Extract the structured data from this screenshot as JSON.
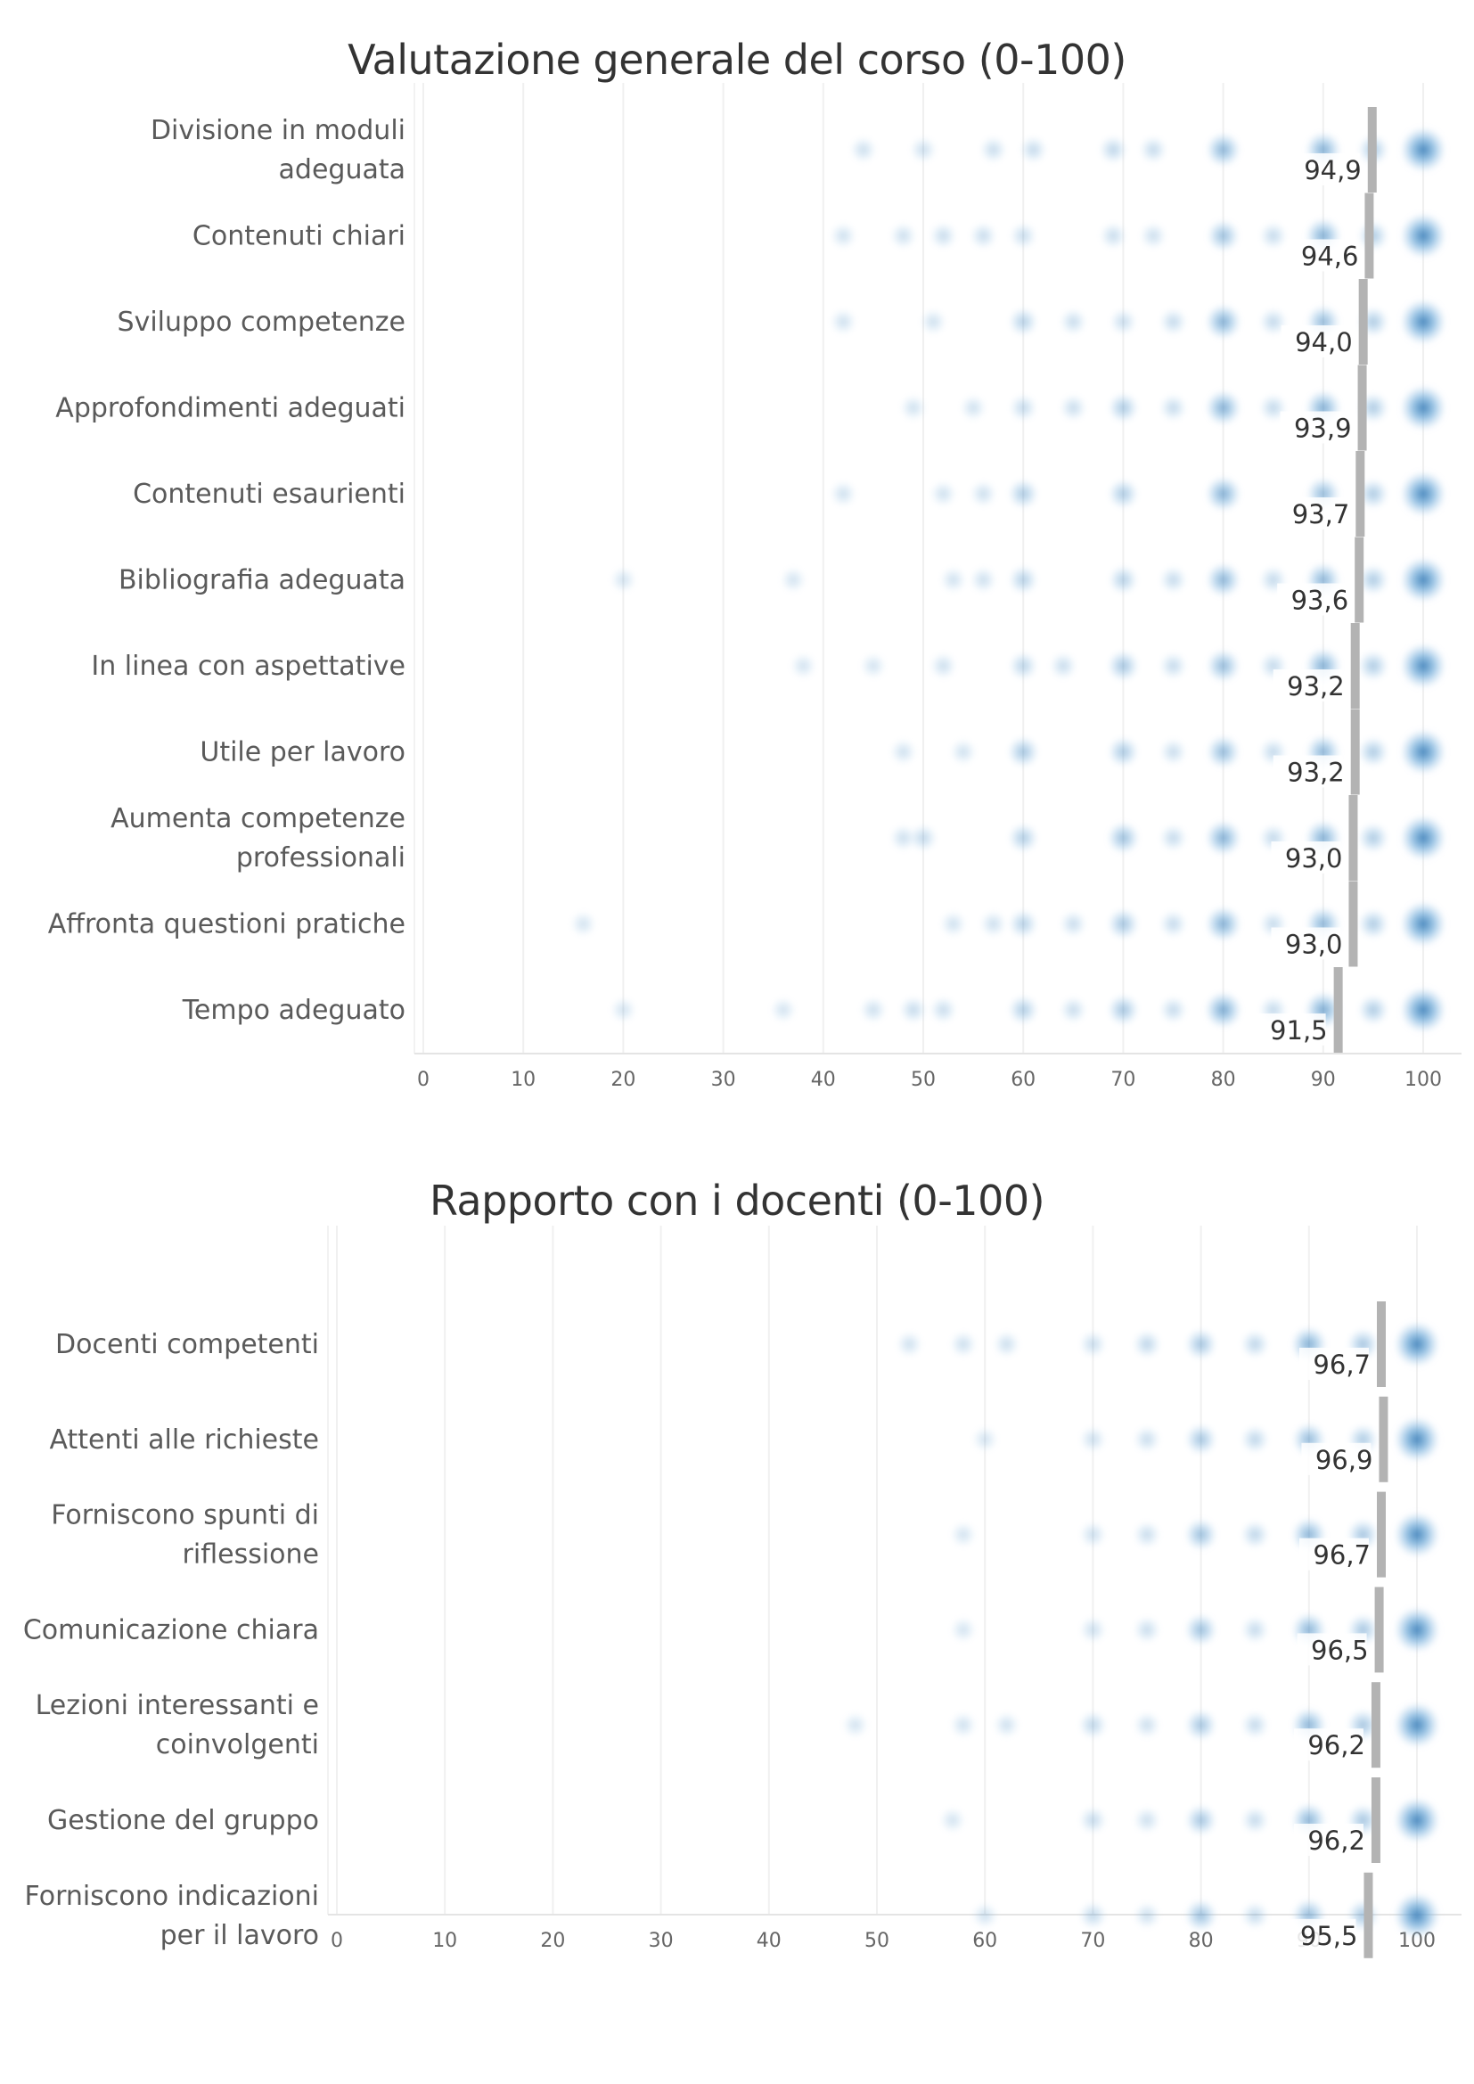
{
  "chart_data": [
    {
      "type": "scatter",
      "title": "Valutazione generale del corso (0-100)",
      "xlim": [
        0,
        100
      ],
      "ticks": [
        0,
        10,
        20,
        30,
        40,
        50,
        60,
        70,
        80,
        90,
        100
      ],
      "grid": true,
      "categories": [
        "Divisione in moduli adeguata",
        "Contenuti chiari",
        "Sviluppo competenze",
        "Approfondimenti adeguati",
        "Contenuti esaurienti",
        "Bibliografia adeguata",
        "In linea con aspettative",
        "Utile per lavoro",
        "Aumenta competenze professionali",
        "Affronta questioni pratiche",
        "Tempo adeguato"
      ],
      "label_lines": [
        [
          "Divisione in moduli",
          "adeguata"
        ],
        [
          "Contenuti chiari"
        ],
        [
          "Sviluppo competenze"
        ],
        [
          "Approfondimenti adeguati"
        ],
        [
          "Contenuti esaurienti"
        ],
        [
          "Bibliografia adeguata"
        ],
        [
          "In linea con aspettative"
        ],
        [
          "Utile per lavoro"
        ],
        [
          "Aumenta competenze",
          "professionali"
        ],
        [
          "Affronta questioni pratiche"
        ],
        [
          "Tempo adeguato"
        ]
      ],
      "means": [
        94.9,
        94.6,
        94.0,
        93.9,
        93.7,
        93.6,
        93.2,
        93.2,
        93.0,
        93.0,
        91.5
      ],
      "mean_labels": [
        "94,9",
        "94,6",
        "94,0",
        "93,9",
        "93,7",
        "93,6",
        "93,2",
        "93,2",
        "93,0",
        "93,0",
        "91,5"
      ],
      "dots": [
        [
          [
            44,
            0.12
          ],
          [
            50,
            0.12
          ],
          [
            57,
            0.14
          ],
          [
            61,
            0.16
          ],
          [
            69,
            0.2
          ],
          [
            73,
            0.16
          ],
          [
            80,
            0.5
          ],
          [
            90,
            0.55
          ],
          [
            95,
            0.3
          ],
          [
            100,
            1.0
          ]
        ],
        [
          [
            42,
            0.1
          ],
          [
            48,
            0.12
          ],
          [
            52,
            0.14
          ],
          [
            56,
            0.14
          ],
          [
            60,
            0.14
          ],
          [
            69,
            0.14
          ],
          [
            73,
            0.12
          ],
          [
            80,
            0.4
          ],
          [
            85,
            0.16
          ],
          [
            90,
            0.55
          ],
          [
            95,
            0.3
          ],
          [
            100,
            1.0
          ]
        ],
        [
          [
            42,
            0.1
          ],
          [
            51,
            0.1
          ],
          [
            60,
            0.25
          ],
          [
            65,
            0.14
          ],
          [
            70,
            0.14
          ],
          [
            75,
            0.16
          ],
          [
            80,
            0.55
          ],
          [
            85,
            0.18
          ],
          [
            90,
            0.45
          ],
          [
            95,
            0.3
          ],
          [
            100,
            1.0
          ]
        ],
        [
          [
            49,
            0.1
          ],
          [
            55,
            0.1
          ],
          [
            60,
            0.16
          ],
          [
            65,
            0.14
          ],
          [
            70,
            0.3
          ],
          [
            75,
            0.16
          ],
          [
            80,
            0.55
          ],
          [
            85,
            0.18
          ],
          [
            90,
            0.55
          ],
          [
            95,
            0.3
          ],
          [
            100,
            1.0
          ]
        ],
        [
          [
            42,
            0.1
          ],
          [
            52,
            0.1
          ],
          [
            56,
            0.12
          ],
          [
            60,
            0.3
          ],
          [
            70,
            0.3
          ],
          [
            80,
            0.55
          ],
          [
            90,
            0.45
          ],
          [
            95,
            0.3
          ],
          [
            100,
            1.0
          ]
        ],
        [
          [
            20,
            0.08
          ],
          [
            37,
            0.08
          ],
          [
            53,
            0.1
          ],
          [
            56,
            0.12
          ],
          [
            60,
            0.25
          ],
          [
            70,
            0.25
          ],
          [
            75,
            0.16
          ],
          [
            80,
            0.5
          ],
          [
            85,
            0.18
          ],
          [
            90,
            0.5
          ],
          [
            95,
            0.3
          ],
          [
            100,
            1.0
          ]
        ],
        [
          [
            38,
            0.08
          ],
          [
            45,
            0.08
          ],
          [
            52,
            0.12
          ],
          [
            60,
            0.22
          ],
          [
            64,
            0.14
          ],
          [
            70,
            0.35
          ],
          [
            75,
            0.16
          ],
          [
            80,
            0.45
          ],
          [
            85,
            0.18
          ],
          [
            90,
            0.55
          ],
          [
            95,
            0.3
          ],
          [
            100,
            1.0
          ]
        ],
        [
          [
            48,
            0.1
          ],
          [
            54,
            0.1
          ],
          [
            60,
            0.35
          ],
          [
            70,
            0.32
          ],
          [
            75,
            0.14
          ],
          [
            80,
            0.45
          ],
          [
            85,
            0.18
          ],
          [
            90,
            0.5
          ],
          [
            95,
            0.3
          ],
          [
            100,
            1.0
          ]
        ],
        [
          [
            48,
            0.12
          ],
          [
            50,
            0.18
          ],
          [
            60,
            0.28
          ],
          [
            70,
            0.4
          ],
          [
            75,
            0.16
          ],
          [
            80,
            0.55
          ],
          [
            85,
            0.18
          ],
          [
            90,
            0.55
          ],
          [
            95,
            0.3
          ],
          [
            100,
            1.0
          ]
        ],
        [
          [
            16,
            0.08
          ],
          [
            53,
            0.1
          ],
          [
            57,
            0.12
          ],
          [
            60,
            0.25
          ],
          [
            65,
            0.14
          ],
          [
            70,
            0.35
          ],
          [
            75,
            0.16
          ],
          [
            80,
            0.55
          ],
          [
            85,
            0.16
          ],
          [
            90,
            0.5
          ],
          [
            95,
            0.3
          ],
          [
            100,
            1.0
          ]
        ],
        [
          [
            20,
            0.08
          ],
          [
            36,
            0.08
          ],
          [
            45,
            0.12
          ],
          [
            49,
            0.16
          ],
          [
            52,
            0.14
          ],
          [
            60,
            0.28
          ],
          [
            65,
            0.14
          ],
          [
            70,
            0.35
          ],
          [
            75,
            0.16
          ],
          [
            80,
            0.6
          ],
          [
            85,
            0.18
          ],
          [
            90,
            0.6
          ],
          [
            95,
            0.3
          ],
          [
            100,
            1.0
          ]
        ]
      ]
    },
    {
      "type": "scatter",
      "title": "Rapporto con i docenti (0-100)",
      "xlim": [
        0,
        100
      ],
      "ticks": [
        0,
        10,
        20,
        30,
        40,
        50,
        60,
        70,
        80,
        90,
        100
      ],
      "grid": true,
      "categories": [
        "Docenti competenti",
        "Attenti alle richieste",
        "Forniscono spunti di riflessione",
        "Comunicazione chiara",
        "Lezioni interessanti e coinvolgenti",
        "Gestione del gruppo",
        "Forniscono indicazioni per il lavoro"
      ],
      "label_lines": [
        [
          "Docenti competenti"
        ],
        [
          "Attenti alle richieste"
        ],
        [
          "Forniscono spunti di",
          "riflessione"
        ],
        [
          "Comunicazione chiara"
        ],
        [
          "Lezioni interessanti e",
          "coinvolgenti"
        ],
        [
          "Gestione del gruppo"
        ],
        [
          "Forniscono indicazioni",
          "per il lavoro"
        ]
      ],
      "means": [
        96.7,
        96.9,
        96.7,
        96.5,
        96.2,
        96.2,
        95.5
      ],
      "mean_labels": [
        "96,7",
        "96,9",
        "96,7",
        "96,5",
        "96,2",
        "96,2",
        "95,5"
      ],
      "dots": [
        [
          [
            53,
            0.1
          ],
          [
            58,
            0.12
          ],
          [
            62,
            0.12
          ],
          [
            70,
            0.14
          ],
          [
            75,
            0.2
          ],
          [
            80,
            0.35
          ],
          [
            85,
            0.2
          ],
          [
            90,
            0.55
          ],
          [
            95,
            0.35
          ],
          [
            100,
            1.0
          ]
        ],
        [
          [
            60,
            0.08
          ],
          [
            70,
            0.12
          ],
          [
            75,
            0.14
          ],
          [
            80,
            0.35
          ],
          [
            85,
            0.2
          ],
          [
            90,
            0.45
          ],
          [
            95,
            0.3
          ],
          [
            100,
            1.0
          ]
        ],
        [
          [
            58,
            0.08
          ],
          [
            70,
            0.12
          ],
          [
            75,
            0.14
          ],
          [
            80,
            0.4
          ],
          [
            85,
            0.2
          ],
          [
            90,
            0.5
          ],
          [
            95,
            0.35
          ],
          [
            100,
            1.0
          ]
        ],
        [
          [
            58,
            0.08
          ],
          [
            70,
            0.12
          ],
          [
            75,
            0.14
          ],
          [
            80,
            0.4
          ],
          [
            85,
            0.16
          ],
          [
            90,
            0.5
          ],
          [
            95,
            0.35
          ],
          [
            100,
            1.0
          ]
        ],
        [
          [
            48,
            0.08
          ],
          [
            58,
            0.1
          ],
          [
            62,
            0.1
          ],
          [
            70,
            0.2
          ],
          [
            75,
            0.12
          ],
          [
            80,
            0.35
          ],
          [
            85,
            0.16
          ],
          [
            90,
            0.5
          ],
          [
            95,
            0.35
          ],
          [
            100,
            1.0
          ]
        ],
        [
          [
            57,
            0.08
          ],
          [
            70,
            0.16
          ],
          [
            75,
            0.12
          ],
          [
            80,
            0.35
          ],
          [
            85,
            0.16
          ],
          [
            90,
            0.5
          ],
          [
            95,
            0.35
          ],
          [
            100,
            1.0
          ]
        ],
        [
          [
            60,
            0.1
          ],
          [
            70,
            0.18
          ],
          [
            75,
            0.12
          ],
          [
            80,
            0.4
          ],
          [
            85,
            0.16
          ],
          [
            90,
            0.45
          ],
          [
            95,
            0.35
          ],
          [
            100,
            1.0
          ]
        ]
      ]
    }
  ]
}
